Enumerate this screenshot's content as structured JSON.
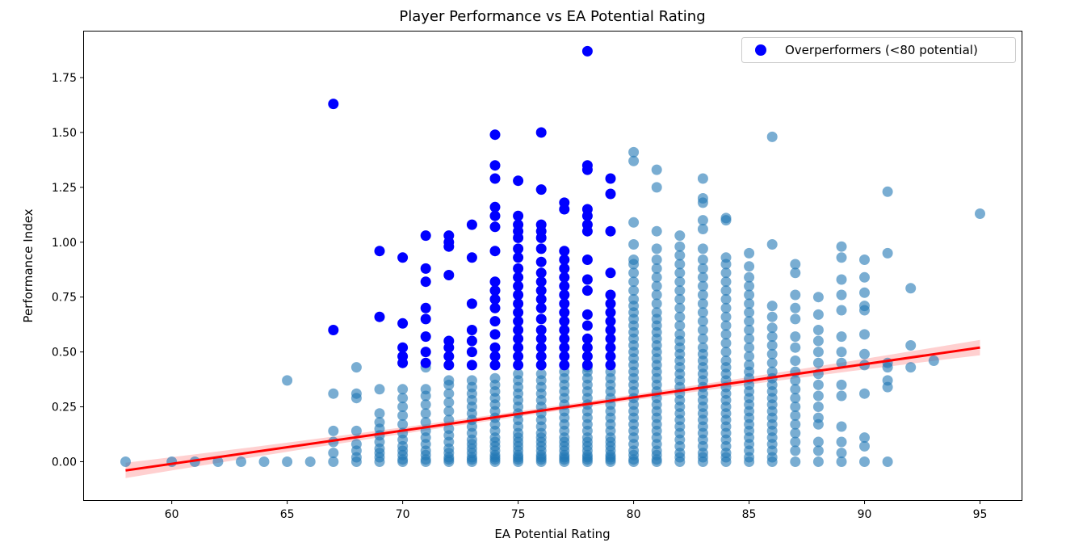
{
  "chart_data": {
    "type": "scatter",
    "title": "Player Performance vs EA Potential Rating",
    "xlabel": "EA Potential Rating",
    "ylabel": "Performance Index",
    "xlim": [
      56.2,
      96.8
    ],
    "ylim": [
      -0.175,
      1.96
    ],
    "xticks": [
      60,
      65,
      70,
      75,
      80,
      85,
      90,
      95
    ],
    "yticks": [
      0.0,
      0.25,
      0.5,
      0.75,
      1.0,
      1.25,
      1.5,
      1.75
    ],
    "ytick_labels": [
      "0.00",
      "0.25",
      "0.50",
      "0.75",
      "1.00",
      "1.25",
      "1.50",
      "1.75"
    ],
    "grid": false,
    "legend": {
      "placement": "top-right",
      "entries": [
        "Overperformers (<80 potential)"
      ]
    },
    "colors": {
      "all_players": "#1f77b4",
      "overperformers": "#0000ff",
      "regression_line": "#ff0000",
      "confidence_band": "#ffb0b0"
    },
    "regression": {
      "x": [
        58,
        95
      ],
      "y": [
        -0.04,
        0.52
      ],
      "ci_halfwidth_ends": 0.035,
      "ci_halfwidth_mid": 0.012
    },
    "series": [
      {
        "role": "all_players",
        "columns": [
          {
            "x": 58,
            "y": [
              0.0
            ]
          },
          {
            "x": 60,
            "y": [
              0.0
            ]
          },
          {
            "x": 61,
            "y": [
              0.0
            ]
          },
          {
            "x": 62,
            "y": [
              0.0
            ]
          },
          {
            "x": 63,
            "y": [
              0.0
            ]
          },
          {
            "x": 64,
            "y": [
              0.0
            ]
          },
          {
            "x": 65,
            "y": [
              0.0,
              0.37
            ]
          },
          {
            "x": 66,
            "y": [
              0.0
            ]
          },
          {
            "x": 67,
            "y": [
              0.0,
              0.04,
              0.09,
              0.14,
              0.31
            ]
          },
          {
            "x": 68,
            "y": [
              0.0,
              0.02,
              0.05,
              0.08,
              0.14,
              0.29,
              0.31,
              0.43
            ]
          },
          {
            "x": 69,
            "y": [
              0.0,
              0.02,
              0.04,
              0.06,
              0.09,
              0.12,
              0.15,
              0.18,
              0.22,
              0.33
            ]
          },
          {
            "x": 70,
            "y": [
              0.0,
              0.01,
              0.03,
              0.05,
              0.07,
              0.1,
              0.13,
              0.17,
              0.21,
              0.25,
              0.29,
              0.33
            ]
          },
          {
            "x": 71,
            "y": [
              0.0,
              0.01,
              0.03,
              0.05,
              0.08,
              0.11,
              0.14,
              0.18,
              0.22,
              0.26,
              0.3,
              0.33,
              0.43
            ]
          },
          {
            "x": 72,
            "y": [
              0.0,
              0.01,
              0.02,
              0.04,
              0.06,
              0.09,
              0.12,
              0.15,
              0.19,
              0.23,
              0.27,
              0.31,
              0.35,
              0.37
            ]
          },
          {
            "x": 73,
            "y": [
              0.0,
              0.01,
              0.02,
              0.04,
              0.06,
              0.08,
              0.1,
              0.13,
              0.16,
              0.19,
              0.22,
              0.25,
              0.28,
              0.31,
              0.34,
              0.37
            ]
          },
          {
            "x": 74,
            "y": [
              0.0,
              0.01,
              0.02,
              0.03,
              0.05,
              0.07,
              0.09,
              0.11,
              0.14,
              0.17,
              0.2,
              0.23,
              0.26,
              0.29,
              0.32,
              0.35,
              0.38
            ]
          },
          {
            "x": 75,
            "y": [
              0.0,
              0.01,
              0.02,
              0.03,
              0.05,
              0.07,
              0.09,
              0.11,
              0.13,
              0.16,
              0.19,
              0.22,
              0.25,
              0.28,
              0.31,
              0.34,
              0.37,
              0.4
            ]
          },
          {
            "x": 76,
            "y": [
              0.0,
              0.01,
              0.02,
              0.03,
              0.05,
              0.07,
              0.09,
              0.11,
              0.13,
              0.16,
              0.19,
              0.22,
              0.25,
              0.28,
              0.31,
              0.34,
              0.37,
              0.4
            ]
          },
          {
            "x": 77,
            "y": [
              0.0,
              0.01,
              0.02,
              0.03,
              0.05,
              0.07,
              0.09,
              0.11,
              0.14,
              0.17,
              0.2,
              0.23,
              0.26,
              0.29,
              0.32,
              0.35,
              0.38,
              0.41
            ]
          },
          {
            "x": 78,
            "y": [
              0.0,
              0.01,
              0.02,
              0.03,
              0.05,
              0.07,
              0.09,
              0.11,
              0.14,
              0.17,
              0.2,
              0.23,
              0.26,
              0.29,
              0.32,
              0.35,
              0.38,
              0.41,
              0.43
            ]
          },
          {
            "x": 79,
            "y": [
              0.0,
              0.01,
              0.02,
              0.03,
              0.05,
              0.07,
              0.09,
              0.11,
              0.14,
              0.17,
              0.2,
              0.23,
              0.26,
              0.29,
              0.32,
              0.35,
              0.38,
              0.41
            ]
          },
          {
            "x": 80,
            "y": [
              0.0,
              0.01,
              0.03,
              0.05,
              0.08,
              0.11,
              0.14,
              0.17,
              0.2,
              0.23,
              0.26,
              0.29,
              0.32,
              0.35,
              0.38,
              0.41,
              0.44,
              0.47,
              0.5,
              0.53,
              0.56,
              0.59,
              0.62,
              0.65,
              0.68,
              0.71,
              0.74,
              0.78,
              0.82,
              0.86,
              0.9,
              0.92,
              0.99,
              1.09,
              1.37,
              1.41
            ]
          },
          {
            "x": 81,
            "y": [
              0.0,
              0.01,
              0.03,
              0.05,
              0.08,
              0.11,
              0.14,
              0.17,
              0.2,
              0.23,
              0.26,
              0.29,
              0.32,
              0.35,
              0.38,
              0.41,
              0.44,
              0.47,
              0.5,
              0.53,
              0.56,
              0.59,
              0.62,
              0.65,
              0.68,
              0.72,
              0.76,
              0.8,
              0.84,
              0.88,
              0.92,
              0.97,
              1.05,
              1.25,
              1.33
            ]
          },
          {
            "x": 82,
            "y": [
              0.0,
              0.02,
              0.04,
              0.07,
              0.1,
              0.13,
              0.16,
              0.19,
              0.22,
              0.25,
              0.28,
              0.31,
              0.34,
              0.37,
              0.4,
              0.43,
              0.46,
              0.49,
              0.52,
              0.55,
              0.58,
              0.62,
              0.66,
              0.7,
              0.74,
              0.78,
              0.82,
              0.86,
              0.9,
              0.94,
              0.98,
              1.03
            ]
          },
          {
            "x": 83,
            "y": [
              0.0,
              0.02,
              0.04,
              0.07,
              0.1,
              0.13,
              0.16,
              0.19,
              0.22,
              0.25,
              0.28,
              0.31,
              0.34,
              0.37,
              0.4,
              0.43,
              0.46,
              0.49,
              0.52,
              0.56,
              0.6,
              0.64,
              0.68,
              0.72,
              0.76,
              0.8,
              0.84,
              0.88,
              0.92,
              0.97,
              1.06,
              1.1,
              1.18,
              1.2,
              1.29
            ]
          },
          {
            "x": 84,
            "y": [
              0.0,
              0.02,
              0.04,
              0.07,
              0.1,
              0.13,
              0.16,
              0.19,
              0.22,
              0.25,
              0.28,
              0.31,
              0.34,
              0.37,
              0.4,
              0.43,
              0.46,
              0.5,
              0.54,
              0.58,
              0.62,
              0.66,
              0.7,
              0.74,
              0.78,
              0.82,
              0.86,
              0.9,
              0.93,
              1.1,
              1.11
            ]
          },
          {
            "x": 85,
            "y": [
              0.0,
              0.02,
              0.05,
              0.08,
              0.11,
              0.14,
              0.17,
              0.2,
              0.23,
              0.26,
              0.29,
              0.32,
              0.35,
              0.38,
              0.41,
              0.44,
              0.48,
              0.52,
              0.56,
              0.6,
              0.64,
              0.68,
              0.72,
              0.76,
              0.8,
              0.84,
              0.89,
              0.95
            ]
          },
          {
            "x": 86,
            "y": [
              0.0,
              0.02,
              0.05,
              0.08,
              0.11,
              0.14,
              0.17,
              0.2,
              0.23,
              0.26,
              0.29,
              0.32,
              0.35,
              0.38,
              0.41,
              0.45,
              0.49,
              0.53,
              0.57,
              0.61,
              0.66,
              0.71,
              0.99,
              1.48
            ]
          },
          {
            "x": 87,
            "y": [
              0.0,
              0.05,
              0.09,
              0.13,
              0.17,
              0.21,
              0.25,
              0.29,
              0.33,
              0.37,
              0.41,
              0.46,
              0.52,
              0.57,
              0.65,
              0.7,
              0.76,
              0.86,
              0.9
            ]
          },
          {
            "x": 88,
            "y": [
              0.0,
              0.05,
              0.09,
              0.17,
              0.2,
              0.25,
              0.3,
              0.35,
              0.4,
              0.45,
              0.5,
              0.55,
              0.6,
              0.67,
              0.75
            ]
          },
          {
            "x": 89,
            "y": [
              0.0,
              0.04,
              0.09,
              0.16,
              0.3,
              0.35,
              0.45,
              0.5,
              0.57,
              0.69,
              0.76,
              0.83,
              0.93,
              0.98
            ]
          },
          {
            "x": 90,
            "y": [
              0.0,
              0.07,
              0.11,
              0.31,
              0.44,
              0.49,
              0.58,
              0.69,
              0.71,
              0.77,
              0.84,
              0.92
            ]
          },
          {
            "x": 91,
            "y": [
              0.0,
              0.34,
              0.37,
              0.43,
              0.45,
              0.95,
              1.23
            ]
          },
          {
            "x": 92,
            "y": [
              0.43,
              0.53,
              0.79
            ]
          },
          {
            "x": 93,
            "y": [
              0.46
            ]
          },
          {
            "x": 95,
            "y": [
              1.13
            ]
          }
        ]
      },
      {
        "role": "overperformers",
        "name": "Overperformers (<80 potential)",
        "columns": [
          {
            "x": 67,
            "y": [
              0.6,
              1.63
            ]
          },
          {
            "x": 69,
            "y": [
              0.66,
              0.96
            ]
          },
          {
            "x": 70,
            "y": [
              0.45,
              0.48,
              0.52,
              0.63,
              0.93
            ]
          },
          {
            "x": 71,
            "y": [
              0.45,
              0.5,
              0.57,
              0.65,
              0.7,
              0.82,
              0.88,
              1.03
            ]
          },
          {
            "x": 72,
            "y": [
              0.44,
              0.48,
              0.52,
              0.55,
              0.85,
              0.98,
              1.0,
              1.03
            ]
          },
          {
            "x": 73,
            "y": [
              0.44,
              0.5,
              0.55,
              0.6,
              0.72,
              0.93,
              1.08
            ]
          },
          {
            "x": 74,
            "y": [
              0.44,
              0.48,
              0.52,
              0.58,
              0.64,
              0.7,
              0.74,
              0.78,
              0.82,
              0.96,
              1.07,
              1.12,
              1.16,
              1.29,
              1.35,
              1.49
            ]
          },
          {
            "x": 75,
            "y": [
              0.44,
              0.48,
              0.52,
              0.56,
              0.6,
              0.64,
              0.68,
              0.72,
              0.76,
              0.8,
              0.84,
              0.88,
              0.93,
              0.97,
              1.02,
              1.05,
              1.08,
              1.12,
              1.28
            ]
          },
          {
            "x": 76,
            "y": [
              0.44,
              0.48,
              0.52,
              0.56,
              0.6,
              0.65,
              0.7,
              0.74,
              0.78,
              0.82,
              0.86,
              0.91,
              0.97,
              1.02,
              1.05,
              1.08,
              1.24,
              1.5
            ]
          },
          {
            "x": 77,
            "y": [
              0.44,
              0.48,
              0.52,
              0.56,
              0.6,
              0.64,
              0.68,
              0.72,
              0.76,
              0.8,
              0.84,
              0.88,
              0.92,
              0.96,
              1.15,
              1.18
            ]
          },
          {
            "x": 78,
            "y": [
              0.44,
              0.48,
              0.52,
              0.56,
              0.62,
              0.67,
              0.78,
              0.83,
              0.92,
              1.05,
              1.08,
              1.12,
              1.15,
              1.33,
              1.35,
              1.87
            ]
          },
          {
            "x": 79,
            "y": [
              0.44,
              0.48,
              0.52,
              0.56,
              0.6,
              0.64,
              0.68,
              0.72,
              0.76,
              0.86,
              1.05,
              1.22,
              1.29
            ]
          }
        ]
      }
    ]
  }
}
